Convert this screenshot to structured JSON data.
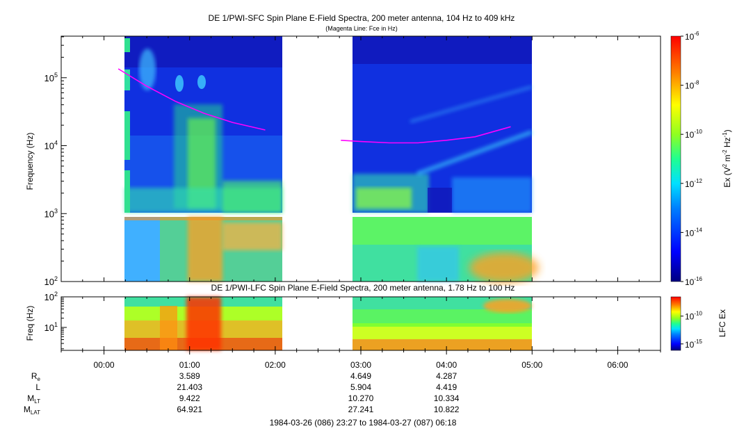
{
  "chart_data": [
    {
      "type": "heatmap",
      "title": "DE 1/PWI-SFC  Spin Plane E-Field Spectra, 200 meter antenna, 104 Hz to 409 kHz",
      "subtitle": "(Magenta Line: Fce in Hz)",
      "ylabel": "Frequency (Hz)",
      "yscale": "log",
      "ylim": [
        100,
        409000
      ],
      "yticks": [
        {
          "value": 100,
          "mant": "10",
          "exp": "2"
        },
        {
          "value": 1000,
          "mant": "10",
          "exp": "3"
        },
        {
          "value": 10000,
          "mant": "10",
          "exp": "4"
        },
        {
          "value": 100000,
          "mant": "10",
          "exp": "5"
        }
      ],
      "colorbar": {
        "label_pre": "Ex (V",
        "label_sup1": "2",
        "label_mid": " m",
        "label_sup2": "-2",
        "label_hz": " Hz",
        "label_sup3": "-1",
        "label_post": ")",
        "scale": "log",
        "range": [
          1e-16,
          1e-06
        ],
        "ticks": [
          {
            "value": 1e-06,
            "mant": "10",
            "exp": "-6"
          },
          {
            "value": 1e-08,
            "mant": "10",
            "exp": "-8"
          },
          {
            "value": 1e-10,
            "mant": "10",
            "exp": "-10"
          },
          {
            "value": 1e-12,
            "mant": "10",
            "exp": "-12"
          },
          {
            "value": 1e-14,
            "mant": "10",
            "exp": "-14"
          },
          {
            "value": 1e-16,
            "mant": "10",
            "exp": "-16"
          }
        ]
      },
      "data_segments": [
        {
          "start": "00:10",
          "end": "01:55"
        },
        {
          "start": "02:45",
          "end": "04:47"
        }
      ],
      "fce_line": [
        {
          "points": [
            [
              "00:10",
              135000
            ],
            [
              "00:30",
              75000
            ],
            [
              "00:50",
              45000
            ],
            [
              "01:10",
              30000
            ],
            [
              "01:30",
              22000
            ],
            [
              "01:53",
              17000
            ]
          ]
        },
        {
          "points": [
            [
              "02:46",
              12000
            ],
            [
              "03:00",
              11500
            ],
            [
              "03:20",
              11000
            ],
            [
              "03:40",
              11000
            ],
            [
              "04:00",
              12000
            ],
            [
              "04:20",
              13500
            ],
            [
              "04:45",
              19000
            ]
          ]
        }
      ]
    },
    {
      "type": "heatmap",
      "title": "DE 1/PWI-LFC  Spin Plane E-Field Spectra, 200 meter antenna, 1.78 Hz to 100 Hz",
      "ylabel": "Freq (Hz)",
      "yscale": "log",
      "ylim": [
        1.78,
        100
      ],
      "yticks": [
        {
          "value": 100,
          "mant": "10",
          "exp": "2"
        },
        {
          "value": 10,
          "mant": "10",
          "exp": "1"
        }
      ],
      "colorbar": {
        "label": "LFC Ex",
        "scale": "log",
        "range": [
          1e-16,
          1e-06
        ],
        "ticks": [
          {
            "value": 1e-10,
            "mant": "10",
            "exp": "-10"
          },
          {
            "value": 1e-15,
            "mant": "10",
            "exp": "-15"
          }
        ]
      },
      "data_segments": [
        {
          "start": "00:10",
          "end": "01:55"
        },
        {
          "start": "02:45",
          "end": "04:47"
        }
      ]
    }
  ],
  "time_axis": {
    "range": [
      "-00:30",
      "06:30"
    ],
    "tick_labels": [
      "00:00",
      "01:00",
      "02:00",
      "03:00",
      "04:00",
      "05:00",
      "06:00"
    ]
  },
  "ephemeris": {
    "rows": [
      {
        "label": "R",
        "sub": "e",
        "values": [
          "3.589",
          "4.649",
          "4.287"
        ]
      },
      {
        "label": "L",
        "sub": "",
        "values": [
          "21.403",
          "5.904",
          "4.419"
        ]
      },
      {
        "label": "M",
        "sub": "LT",
        "values": [
          "9.422",
          "10.270",
          "10.334"
        ]
      },
      {
        "label": "M",
        "sub": "LAT",
        "values": [
          "64.921",
          "27.241",
          "10.822"
        ]
      }
    ],
    "times": [
      "01:00",
      "03:00",
      "04:00"
    ]
  },
  "time_range_label": "1984-03-26 (086) 23:27 to 1984-03-27 (087) 06:18"
}
